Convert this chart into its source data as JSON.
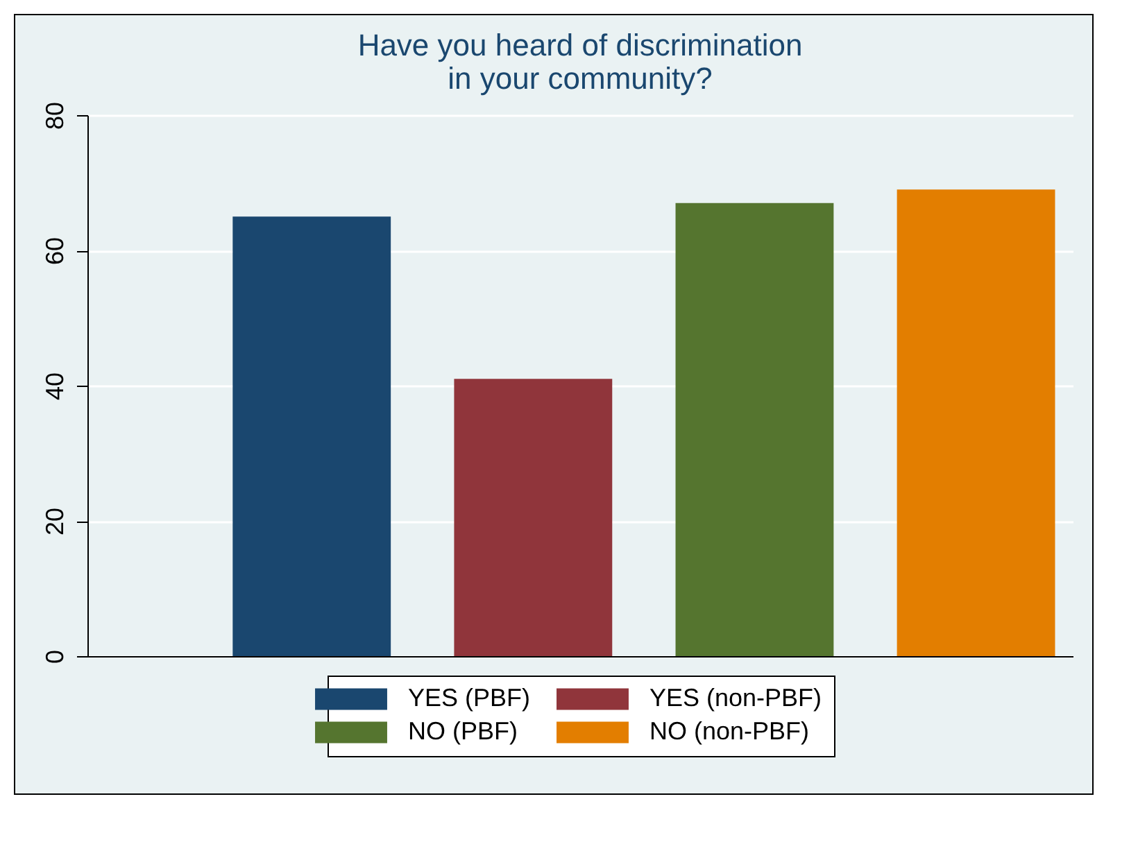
{
  "chart_data": {
    "type": "bar",
    "title": "Have you heard of discrimination\nin your community?",
    "categories": [
      null
    ],
    "series": [
      {
        "name": "YES (PBF)",
        "color": "#1a476f",
        "values": [
          65
        ]
      },
      {
        "name": "YES (non-PBF)",
        "color": "#90353b",
        "values": [
          41
        ]
      },
      {
        "name": "NO (PBF)",
        "color": "#55752f",
        "values": [
          67
        ]
      },
      {
        "name": "NO (non-PBF)",
        "color": "#e37e00",
        "values": [
          69
        ]
      }
    ],
    "ylim": [
      0,
      80
    ],
    "yticks": [
      0,
      20,
      40,
      60,
      80
    ],
    "grid": "y",
    "legend": "bottom"
  }
}
